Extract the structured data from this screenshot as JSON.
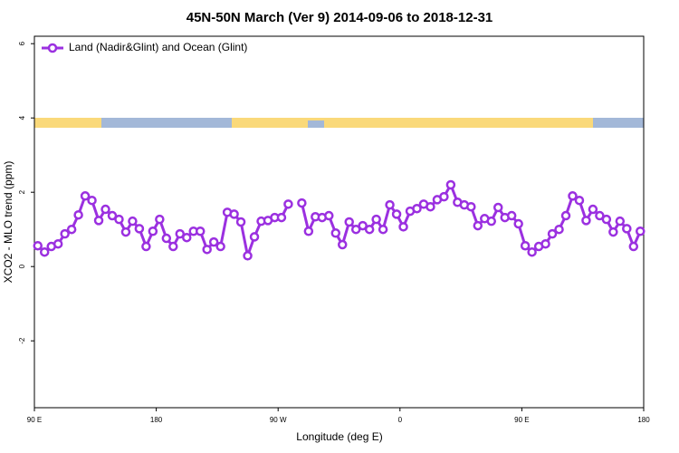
{
  "chart_data": {
    "type": "line",
    "title": "45N-50N March (Ver 9)   2014-09-06 to 2018-12-31",
    "x_label": "Longitude (deg E)",
    "y_label": "XCO2 - MLO trend (ppm)",
    "legend_position": "top-left",
    "xlim": [
      90,
      540
    ],
    "ylim": [
      -3.8,
      6.2
    ],
    "xticks": [
      {
        "value": 90,
        "label": "90 E"
      },
      {
        "value": 180,
        "label": "180"
      },
      {
        "value": 270,
        "label": "90 W"
      },
      {
        "value": 360,
        "label": "0"
      },
      {
        "value": 450,
        "label": "90 E"
      },
      {
        "value": 540,
        "label": "180"
      }
    ],
    "yticks": [
      -2,
      0,
      2,
      4,
      6
    ],
    "x": [
      92.5,
      97.5,
      102.5,
      107.5,
      112.5,
      117.5,
      122.5,
      127.5,
      132.5,
      137.5,
      142.5,
      147.5,
      152.5,
      157.5,
      162.5,
      167.5,
      172.5,
      177.5,
      182.5,
      187.5,
      192.5,
      197.5,
      202.5,
      207.5,
      212.5,
      217.5,
      222.5,
      227.5,
      232.5,
      237.5,
      242.5,
      247.5,
      252.5,
      257.5,
      262.5,
      267.5,
      272.5,
      277.5,
      282.5,
      287.5,
      292.5,
      297.5,
      302.5,
      307.5,
      312.5,
      317.5,
      322.5,
      327.5,
      332.5,
      337.5,
      342.5,
      347.5,
      352.5,
      357.5,
      362.5,
      367.5,
      372.5,
      377.5,
      382.5,
      387.5,
      392.5,
      397.5,
      402.5,
      407.5,
      412.5,
      417.5,
      422.5,
      427.5,
      432.5,
      437.5,
      442.5,
      447.5,
      452.5,
      457.5,
      462.5,
      467.5,
      472.5,
      477.5,
      482.5,
      487.5,
      492.5,
      497.5,
      502.5,
      507.5,
      512.5,
      517.5,
      522.5,
      527.5,
      532.5,
      537.5
    ],
    "series": [
      {
        "name": "Land (Nadir&Glint) and Ocean (Glint)",
        "color": "#9b30e0",
        "values": [
          0.56,
          0.39,
          0.54,
          0.61,
          0.88,
          1.0,
          1.39,
          1.9,
          1.78,
          1.24,
          1.54,
          1.37,
          1.27,
          0.93,
          1.22,
          1.02,
          0.54,
          0.95,
          1.27,
          0.76,
          0.54,
          0.88,
          0.78,
          0.95,
          0.95,
          0.46,
          0.66,
          0.54,
          1.46,
          1.41,
          1.2,
          0.29,
          0.8,
          1.22,
          1.24,
          1.32,
          1.32,
          1.68,
          null,
          1.71,
          0.95,
          1.34,
          1.32,
          1.37,
          0.9,
          0.59,
          1.2,
          1.0,
          1.1,
          1.0,
          1.27,
          1.0,
          1.66,
          1.41,
          1.07,
          1.49,
          1.56,
          1.68,
          1.61,
          1.8,
          1.88,
          2.2,
          1.73,
          1.66,
          1.61,
          1.1,
          1.29,
          1.22,
          1.59,
          1.32,
          1.37,
          1.15,
          0.56,
          0.39,
          0.54,
          0.61,
          0.88,
          1.0,
          1.37,
          1.9,
          1.78,
          1.24,
          1.54,
          1.37,
          1.27,
          0.93,
          1.22,
          1.02,
          0.54,
          0.95
        ]
      }
    ]
  }
}
